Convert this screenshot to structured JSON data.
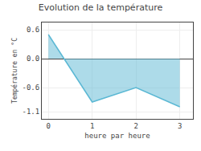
{
  "chart_data": {
    "type": "area",
    "title": "Evolution de la température",
    "xlabel": "heure par heure",
    "ylabel": "Température en °C",
    "x": [
      0,
      1,
      2,
      3
    ],
    "values": [
      0.5,
      -0.9,
      -0.6,
      -1.0
    ],
    "color": "#5bb8d4",
    "xlim": [
      -0.15,
      3.3
    ],
    "ylim": [
      -1.25,
      0.75
    ],
    "xticks": [
      0,
      1,
      2,
      3
    ],
    "yticks": [
      -1.1,
      -0.6,
      {
        "value": 0.0,
        "label": "0.0"
      },
      0.6
    ],
    "grid": true
  }
}
